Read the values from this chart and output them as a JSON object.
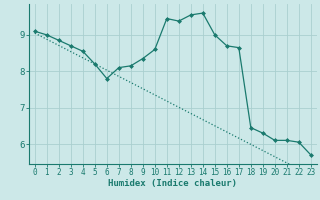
{
  "title": "",
  "xlabel": "Humidex (Indice chaleur)",
  "bg_color": "#cce8e8",
  "line_color": "#1a7a6e",
  "grid_color": "#aacfcf",
  "x_data": [
    0,
    1,
    2,
    3,
    4,
    5,
    6,
    7,
    8,
    9,
    10,
    11,
    12,
    13,
    14,
    15,
    16,
    17,
    18,
    19,
    20,
    21,
    22,
    23
  ],
  "y_main": [
    9.1,
    9.0,
    8.85,
    8.7,
    8.55,
    8.2,
    7.8,
    8.1,
    8.15,
    8.35,
    8.6,
    9.45,
    9.38,
    9.55,
    9.6,
    9.0,
    8.7,
    8.65,
    6.45,
    6.3,
    6.1,
    6.1,
    6.05,
    5.7
  ],
  "y_trend": [
    9.05,
    8.88,
    8.71,
    8.54,
    8.37,
    8.2,
    8.03,
    7.86,
    7.69,
    7.52,
    7.35,
    7.18,
    7.01,
    6.84,
    6.67,
    6.5,
    6.33,
    6.16,
    5.99,
    5.82,
    5.65,
    5.48,
    5.31,
    5.14
  ],
  "ylim": [
    5.45,
    9.85
  ],
  "yticks": [
    6,
    7,
    8,
    9
  ],
  "xlim": [
    -0.5,
    23.5
  ],
  "xticks": [
    0,
    1,
    2,
    3,
    4,
    5,
    6,
    7,
    8,
    9,
    10,
    11,
    12,
    13,
    14,
    15,
    16,
    17,
    18,
    19,
    20,
    21,
    22,
    23
  ]
}
